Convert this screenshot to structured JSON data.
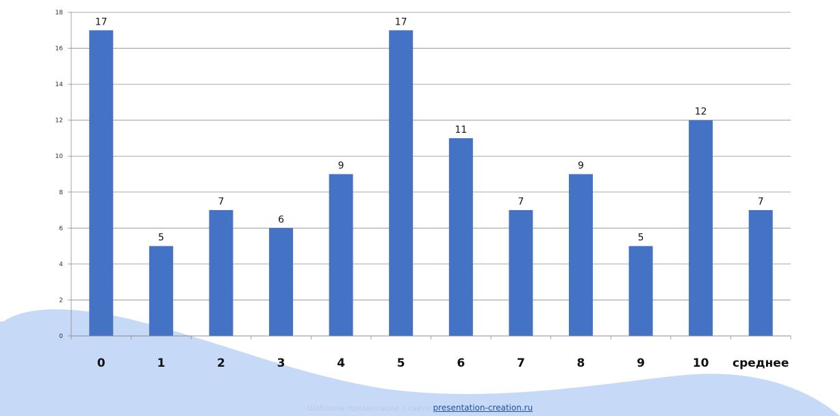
{
  "chart_data": {
    "type": "bar",
    "categories": [
      "0",
      "1",
      "2",
      "3",
      "4",
      "5",
      "6",
      "7",
      "8",
      "9",
      "10",
      "среднее"
    ],
    "values": [
      17,
      5,
      7,
      6,
      9,
      17,
      11,
      7,
      9,
      5,
      12,
      7
    ],
    "data_labels": [
      "17",
      "5",
      "7",
      "6",
      "9",
      "17",
      "11",
      "7",
      "9",
      "5",
      "12",
      "7"
    ],
    "title": "",
    "xlabel": "",
    "ylabel": "",
    "ylim": [
      0,
      18
    ],
    "yticks": [
      0,
      2,
      4,
      6,
      8,
      10,
      12,
      14,
      16,
      18
    ],
    "grid": true,
    "legend": "none",
    "bar_color": "#4472c4",
    "grid_color": "#8c8c8c"
  },
  "footer": {
    "text": "Шаблоны презентаций с сайта",
    "link": "presentation-creation.ru"
  },
  "colors": {
    "wave": "#c6d9f6",
    "footer_text": "#b9c9ea",
    "link": "#1f4f9e"
  }
}
